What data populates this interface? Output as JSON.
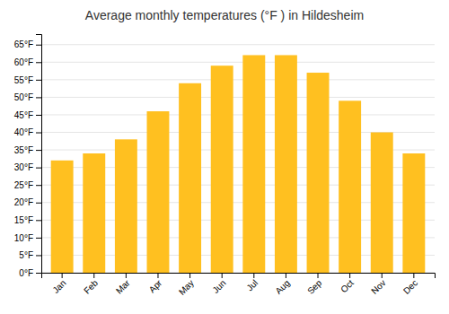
{
  "chart_data": {
    "type": "bar",
    "title": "Average monthly temperatures (°F ) in Hildesheim",
    "categories": [
      "Jan",
      "Feb",
      "Mar",
      "Apr",
      "May",
      "Jun",
      "Jul",
      "Aug",
      "Sep",
      "Oct",
      "Nov",
      "Dec"
    ],
    "values": [
      32,
      34,
      38,
      46,
      54,
      59,
      62,
      62,
      57,
      49,
      40,
      34
    ],
    "color": "#FFC020",
    "ylim": [
      0,
      68
    ],
    "yticks": [
      {
        "value": 0,
        "label": "0°F"
      },
      {
        "value": 5,
        "label": "5°F"
      },
      {
        "value": 10,
        "label": "10°F"
      },
      {
        "value": 15,
        "label": "15°F"
      },
      {
        "value": 20,
        "label": "20°F"
      },
      {
        "value": 25,
        "label": "25°F"
      },
      {
        "value": 30,
        "label": "30°F"
      },
      {
        "value": 35,
        "label": "35°F"
      },
      {
        "value": 40,
        "label": "40°F"
      },
      {
        "value": 45,
        "label": "45°F"
      },
      {
        "value": 50,
        "label": "50°F"
      },
      {
        "value": 55,
        "label": "55°F"
      },
      {
        "value": 60,
        "label": "60°F"
      },
      {
        "value": 65,
        "label": "65°F"
      }
    ],
    "grid": true
  }
}
